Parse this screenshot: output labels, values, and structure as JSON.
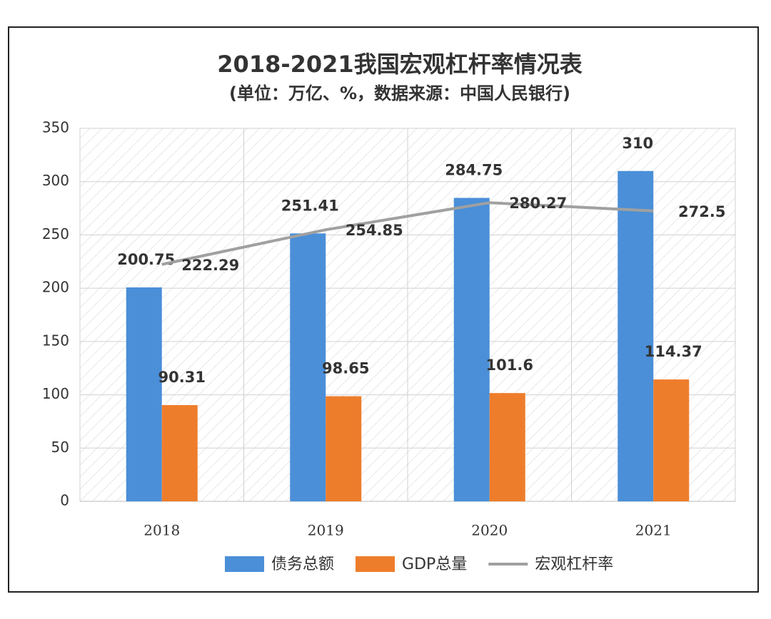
{
  "chart_data": {
    "type": "combo",
    "title": "2018-2021我国宏观杠杆率情况表",
    "subtitle": "(单位：万亿、%，数据来源：中国人民银行)",
    "categories": [
      "2018",
      "2019",
      "2020",
      "2021"
    ],
    "series": [
      {
        "name": "债务总额",
        "type": "bar",
        "color": "#4a8fd8",
        "values": [
          200.75,
          251.41,
          284.75,
          310
        ]
      },
      {
        "name": "GDP总量",
        "type": "bar",
        "color": "#ee7d2b",
        "values": [
          90.31,
          98.65,
          101.6,
          114.37
        ]
      },
      {
        "name": "宏观杠杆率",
        "type": "line",
        "color": "#a0a0a0",
        "values": [
          222.29,
          254.85,
          280.27,
          272.5
        ]
      }
    ],
    "ylim": [
      0,
      350
    ],
    "yticks": [
      0,
      50,
      100,
      150,
      200,
      250,
      300,
      350
    ],
    "grid": true,
    "legend": "bottom"
  }
}
